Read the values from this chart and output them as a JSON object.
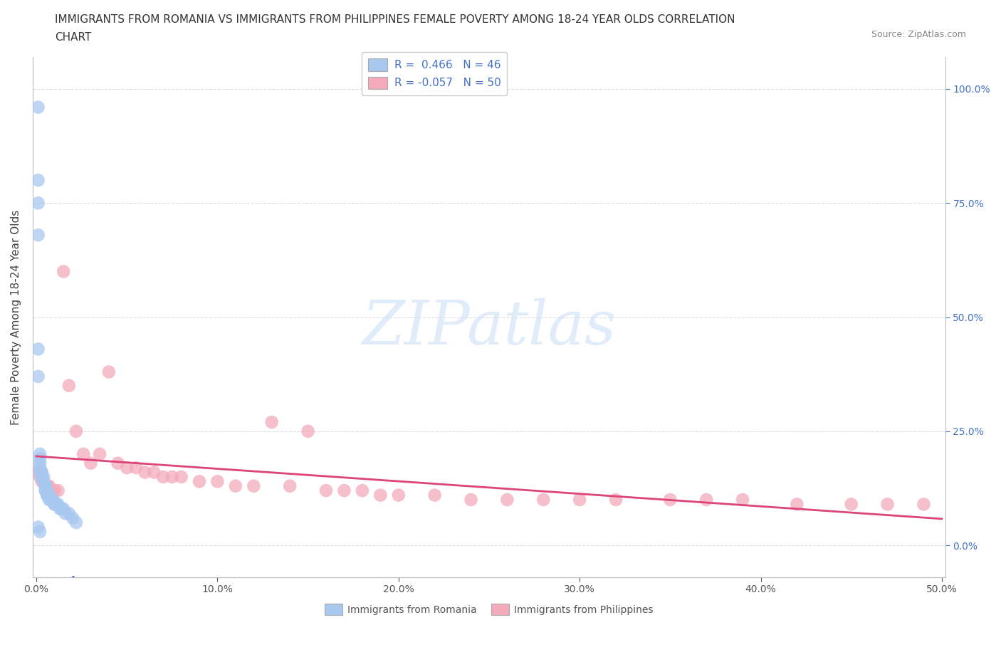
{
  "title_line1": "IMMIGRANTS FROM ROMANIA VS IMMIGRANTS FROM PHILIPPINES FEMALE POVERTY AMONG 18-24 YEAR OLDS CORRELATION",
  "title_line2": "CHART",
  "source": "Source: ZipAtlas.com",
  "ylabel": "Female Poverty Among 18-24 Year Olds",
  "xlim": [
    -0.002,
    0.502
  ],
  "ylim": [
    -0.07,
    1.07
  ],
  "yticks": [
    0.0,
    0.25,
    0.5,
    0.75,
    1.0
  ],
  "ytick_labels_right": [
    "0.0%",
    "25.0%",
    "50.0%",
    "75.0%",
    "100.0%"
  ],
  "xticks": [
    0.0,
    0.1,
    0.2,
    0.3,
    0.4,
    0.5
  ],
  "xtick_labels": [
    "0.0%",
    "10.0%",
    "20.0%",
    "30.0%",
    "40.0%",
    "50.0%"
  ],
  "romania_color": "#A8C8F0",
  "philippines_color": "#F4AABB",
  "romania_line_color": "#3366CC",
  "philippines_line_color": "#DD4477",
  "romania_R": 0.466,
  "romania_N": 46,
  "philippines_R": -0.057,
  "philippines_N": 50,
  "romania_x": [
    0.001,
    0.001,
    0.001,
    0.001,
    0.001,
    0.001,
    0.002,
    0.002,
    0.002,
    0.002,
    0.002,
    0.003,
    0.003,
    0.003,
    0.003,
    0.004,
    0.004,
    0.004,
    0.005,
    0.005,
    0.005,
    0.005,
    0.005,
    0.006,
    0.006,
    0.006,
    0.007,
    0.007,
    0.007,
    0.008,
    0.008,
    0.009,
    0.009,
    0.01,
    0.01,
    0.011,
    0.012,
    0.013,
    0.014,
    0.015,
    0.016,
    0.018,
    0.02,
    0.022,
    0.001,
    0.002
  ],
  "romania_y": [
    0.96,
    0.8,
    0.68,
    0.75,
    0.43,
    0.37,
    0.2,
    0.19,
    0.18,
    0.17,
    0.16,
    0.16,
    0.16,
    0.15,
    0.15,
    0.15,
    0.14,
    0.14,
    0.13,
    0.13,
    0.13,
    0.12,
    0.12,
    0.12,
    0.11,
    0.11,
    0.11,
    0.11,
    0.1,
    0.1,
    0.1,
    0.1,
    0.1,
    0.09,
    0.09,
    0.09,
    0.09,
    0.08,
    0.08,
    0.08,
    0.07,
    0.07,
    0.06,
    0.05,
    0.04,
    0.03
  ],
  "philippines_x": [
    0.001,
    0.002,
    0.003,
    0.004,
    0.005,
    0.006,
    0.007,
    0.008,
    0.01,
    0.012,
    0.015,
    0.018,
    0.022,
    0.026,
    0.03,
    0.035,
    0.04,
    0.045,
    0.05,
    0.055,
    0.06,
    0.065,
    0.07,
    0.075,
    0.08,
    0.09,
    0.1,
    0.11,
    0.12,
    0.13,
    0.14,
    0.15,
    0.16,
    0.17,
    0.18,
    0.19,
    0.2,
    0.22,
    0.24,
    0.26,
    0.28,
    0.3,
    0.32,
    0.35,
    0.37,
    0.39,
    0.42,
    0.45,
    0.47,
    0.49
  ],
  "philippines_y": [
    0.16,
    0.15,
    0.14,
    0.14,
    0.13,
    0.13,
    0.13,
    0.12,
    0.12,
    0.12,
    0.6,
    0.35,
    0.25,
    0.2,
    0.18,
    0.2,
    0.38,
    0.18,
    0.17,
    0.17,
    0.16,
    0.16,
    0.15,
    0.15,
    0.15,
    0.14,
    0.14,
    0.13,
    0.13,
    0.27,
    0.13,
    0.25,
    0.12,
    0.12,
    0.12,
    0.11,
    0.11,
    0.11,
    0.1,
    0.1,
    0.1,
    0.1,
    0.1,
    0.1,
    0.1,
    0.1,
    0.09,
    0.09,
    0.09,
    0.09
  ],
  "watermark_text": "ZIPatlas",
  "background_color": "#FFFFFF",
  "grid_color": "#DDDDDD",
  "title_fontsize": 11,
  "axis_label_fontsize": 11,
  "tick_fontsize": 10,
  "legend_fontsize": 11
}
